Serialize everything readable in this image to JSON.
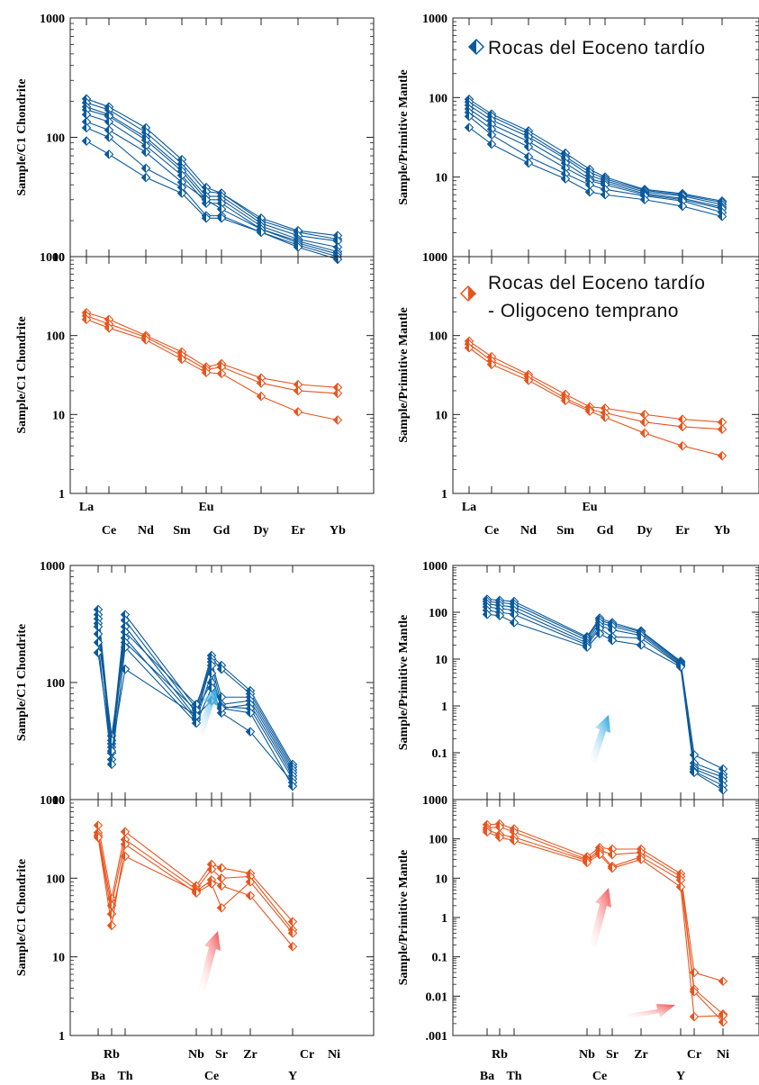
{
  "colors": {
    "blue": "#0b5a9c",
    "orange": "#e8551e",
    "axis": "#222222"
  },
  "legend": {
    "blue": [
      "Rocas del Eoceno tardío"
    ],
    "orange": [
      "Rocas del Eoceno tardío",
      "- Oligoceno temprano"
    ]
  },
  "x_labels": {
    "ree_upper": [
      "La",
      "Eu"
    ],
    "ree_lower": [
      "Ce",
      "Nd",
      "Sm",
      "Gd",
      "Dy",
      "Er",
      "Yb"
    ],
    "spider_upper": [
      "Rb",
      "Nb",
      "Sr",
      "Zr",
      "Cr",
      "Ni"
    ],
    "spider_lower": [
      "Ba",
      "Th",
      "Ce",
      "Y"
    ]
  },
  "chart_data": [
    {
      "type": "line",
      "scale": "log",
      "ylabel": "Sample/C1 Chondrite",
      "ylim": [
        10,
        1000
      ],
      "yticks": [
        "10",
        "100",
        "1000"
      ],
      "x": [
        "La",
        "Ce",
        "Nd",
        "Sm",
        "Eu",
        "Gd",
        "Dy",
        "Er",
        "Yb"
      ],
      "series": [
        {
          "color": "blue",
          "values": [
            210,
            180,
            120,
            65,
            38,
            34,
            20,
            16,
            14
          ]
        },
        {
          "color": "blue",
          "values": [
            195,
            170,
            110,
            60,
            35,
            34,
            21,
            16.5,
            15
          ]
        },
        {
          "color": "blue",
          "values": [
            180,
            155,
            100,
            55,
            32,
            32,
            19,
            15,
            13.5
          ]
        },
        {
          "color": "blue",
          "values": [
            170,
            150,
            95,
            52,
            30,
            30,
            18,
            14,
            12
          ]
        },
        {
          "color": "blue",
          "values": [
            155,
            135,
            85,
            48,
            28,
            28,
            17,
            13.5,
            11
          ]
        },
        {
          "color": "blue",
          "values": [
            135,
            115,
            75,
            42,
            30,
            25,
            17,
            13,
            10.5
          ]
        },
        {
          "color": "blue",
          "values": [
            120,
            100,
            55,
            38,
            22,
            22,
            16,
            12.5,
            10
          ]
        },
        {
          "color": "blue",
          "values": [
            93,
            72,
            46,
            34,
            21,
            21,
            16,
            12,
            9.5
          ]
        }
      ]
    },
    {
      "type": "line",
      "scale": "log",
      "ylabel": "Sample/Primitive Mantle",
      "ylim": [
        1,
        1000
      ],
      "yticks": [
        "10",
        "100",
        "1000"
      ],
      "x": [
        "La",
        "Ce",
        "Nd",
        "Sm",
        "Eu",
        "Gd",
        "Dy",
        "Er",
        "Yb"
      ],
      "series": [
        {
          "color": "blue",
          "values": [
            95,
            62,
            38,
            20,
            12.5,
            10,
            7,
            6.2,
            5
          ]
        },
        {
          "color": "blue",
          "values": [
            88,
            58,
            35,
            18,
            11.5,
            9.5,
            6.8,
            6,
            4.8
          ]
        },
        {
          "color": "blue",
          "values": [
            80,
            52,
            32,
            17,
            10.5,
            9,
            6.5,
            5.8,
            4.5
          ]
        },
        {
          "color": "blue",
          "values": [
            72,
            46,
            28,
            15,
            9.5,
            8.5,
            6.2,
            5.4,
            4.2
          ]
        },
        {
          "color": "blue",
          "values": [
            65,
            40,
            24,
            13,
            9,
            8,
            6,
            5.2,
            4
          ]
        },
        {
          "color": "blue",
          "values": [
            58,
            34,
            18,
            11,
            8,
            7,
            5.8,
            5,
            3.6
          ]
        },
        {
          "color": "blue",
          "values": [
            42,
            26,
            15,
            9.5,
            6.5,
            6,
            5.2,
            4.3,
            3.2
          ]
        }
      ]
    },
    {
      "type": "line",
      "scale": "log",
      "ylabel": "Sample/C1 Chondrite",
      "ylim": [
        1,
        1000
      ],
      "yticks": [
        "1",
        "10",
        "100",
        "1000"
      ],
      "x": [
        "La",
        "Ce",
        "Nd",
        "Sm",
        "Eu",
        "Gd",
        "Dy",
        "Er",
        "Yb"
      ],
      "series": [
        {
          "color": "orange",
          "values": [
            195,
            160,
            100,
            62,
            40,
            44,
            29,
            24,
            22
          ]
        },
        {
          "color": "orange",
          "values": [
            178,
            140,
            95,
            56,
            37,
            40,
            25,
            20,
            18.5
          ]
        },
        {
          "color": "orange",
          "values": [
            160,
            125,
            88,
            50,
            34,
            33,
            17,
            10.8,
            8.5
          ]
        }
      ]
    },
    {
      "type": "line",
      "scale": "log",
      "ylabel": "Sample/Primitive Mantle",
      "ylim": [
        1,
        1000
      ],
      "yticks": [
        "1",
        "10",
        "100",
        "1000"
      ],
      "x": [
        "La",
        "Ce",
        "Nd",
        "Sm",
        "Eu",
        "Gd",
        "Dy",
        "Er",
        "Yb"
      ],
      "series": [
        {
          "color": "orange",
          "values": [
            85,
            54,
            32,
            18,
            12.5,
            12,
            10,
            8.7,
            8
          ]
        },
        {
          "color": "orange",
          "values": [
            78,
            48,
            30,
            16,
            11.5,
            10.5,
            8,
            7,
            6.5
          ]
        },
        {
          "color": "orange",
          "values": [
            70,
            43,
            27,
            15,
            11,
            9.2,
            5.8,
            4,
            3
          ]
        }
      ]
    },
    {
      "type": "line",
      "scale": "log",
      "ylabel": "Sample/C1 Chondrite",
      "ylim": [
        10,
        1000
      ],
      "yticks": [
        "10",
        "100",
        "1000"
      ],
      "x": [
        "Ba",
        "Rb",
        "Th",
        "Nb",
        "Ce",
        "Sr",
        "Zr",
        "Y"
      ],
      "series": [
        {
          "color": "blue",
          "values": [
            420,
            30,
            380,
            60,
            170,
            140,
            85,
            20
          ]
        },
        {
          "color": "blue",
          "values": [
            380,
            25,
            340,
            55,
            160,
            130,
            80,
            19
          ]
        },
        {
          "color": "blue",
          "values": [
            350,
            22,
            300,
            50,
            150,
            75,
            75,
            18
          ]
        },
        {
          "color": "blue",
          "values": [
            320,
            28,
            270,
            65,
            140,
            65,
            70,
            17
          ]
        },
        {
          "color": "blue",
          "values": [
            300,
            35,
            240,
            48,
            120,
            60,
            65,
            16
          ]
        },
        {
          "color": "blue",
          "values": [
            260,
            32,
            220,
            58,
            100,
            62,
            60,
            15
          ]
        },
        {
          "color": "blue",
          "values": [
            220,
            20,
            200,
            45,
            90,
            55,
            38,
            14
          ]
        },
        {
          "color": "blue",
          "values": [
            180,
            26,
            130,
            52,
            70,
            60,
            55,
            13
          ]
        }
      ]
    },
    {
      "type": "line",
      "scale": "log",
      "ylabel": "Sample/Primitive Mantle",
      "ylim": [
        0.01,
        1000
      ],
      "yticks": [
        "0.1",
        "1",
        "10",
        "100",
        "1000"
      ],
      "x": [
        "Ba",
        "Rb",
        "Th",
        "Nb",
        "Ce",
        "Sr",
        "Zr",
        "Y",
        "Cr",
        "Ni"
      ],
      "series": [
        {
          "color": "blue",
          "values": [
            190,
            180,
            170,
            30,
            75,
            60,
            40,
            9,
            0.09,
            0.045
          ]
        },
        {
          "color": "blue",
          "values": [
            170,
            160,
            150,
            28,
            68,
            55,
            38,
            8.5,
            0.06,
            0.035
          ]
        },
        {
          "color": "blue",
          "values": [
            150,
            140,
            130,
            25,
            60,
            50,
            35,
            8,
            0.05,
            0.03
          ]
        },
        {
          "color": "blue",
          "values": [
            130,
            120,
            110,
            22,
            52,
            42,
            32,
            7.5,
            0.045,
            0.025
          ]
        },
        {
          "color": "blue",
          "values": [
            110,
            100,
            90,
            20,
            45,
            30,
            28,
            7.2,
            0.04,
            0.02
          ]
        },
        {
          "color": "blue",
          "values": [
            90,
            85,
            60,
            18,
            35,
            25,
            20,
            6.8,
            0.038,
            0.016
          ]
        }
      ]
    },
    {
      "type": "line",
      "scale": "log",
      "ylabel": "Sample/C1 Chondrite",
      "ylim": [
        1,
        1000
      ],
      "yticks": [
        "1",
        "10",
        "100",
        "1000"
      ],
      "x": [
        "Ba",
        "Rb",
        "Th",
        "Nb",
        "Ce",
        "Sr",
        "Zr",
        "Y"
      ],
      "series": [
        {
          "color": "orange",
          "values": [
            470,
            55,
            390,
            80,
            150,
            135,
            115,
            28
          ]
        },
        {
          "color": "orange",
          "values": [
            380,
            45,
            310,
            72,
            130,
            100,
            105,
            22
          ]
        },
        {
          "color": "orange",
          "values": [
            350,
            35,
            190,
            68,
            95,
            80,
            60,
            13.5
          ]
        },
        {
          "color": "orange",
          "values": [
            330,
            25,
            270,
            65,
            85,
            42,
            90,
            20
          ]
        }
      ]
    },
    {
      "type": "line",
      "scale": "log",
      "ylabel": "Sample/Primitive Mantle",
      "ylim": [
        0.001,
        1000
      ],
      "yticks": [
        ".001",
        "0.01",
        "0.1",
        "1",
        "10",
        "100",
        "1000"
      ],
      "x": [
        "Ba",
        "Rb",
        "Th",
        "Nb",
        "Ce",
        "Sr",
        "Zr",
        "Y",
        "Cr",
        "Ni"
      ],
      "series": [
        {
          "color": "orange",
          "values": [
            230,
            240,
            180,
            35,
            60,
            55,
            55,
            13,
            0.04,
            0.024
          ]
        },
        {
          "color": "orange",
          "values": [
            190,
            200,
            150,
            30,
            52,
            40,
            45,
            11,
            0.015,
            0.0035
          ]
        },
        {
          "color": "orange",
          "values": [
            170,
            130,
            110,
            28,
            45,
            20,
            35,
            9,
            0.013,
            0.0022
          ]
        },
        {
          "color": "orange",
          "values": [
            150,
            110,
            90,
            25,
            40,
            18,
            30,
            6,
            0.003,
            0.0032
          ]
        }
      ]
    }
  ]
}
